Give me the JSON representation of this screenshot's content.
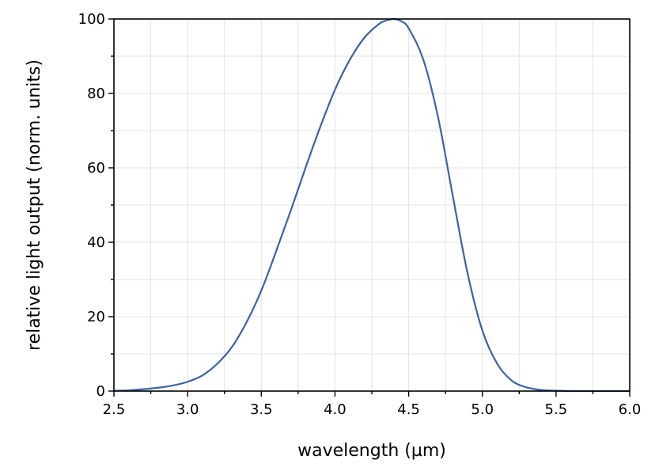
{
  "chart_data": {
    "type": "line",
    "xlabel": "wavelength (µm)",
    "ylabel": "relative light output (norm. units)",
    "xlim": [
      2.5,
      6.0
    ],
    "ylim": [
      0,
      100
    ],
    "x_ticks": [
      "2.5",
      "3.0",
      "3.5",
      "4.0",
      "4.5",
      "5.0",
      "5.5",
      "6.0"
    ],
    "y_ticks": [
      "0",
      "20",
      "40",
      "60",
      "80",
      "100"
    ],
    "grid": true,
    "series": [
      {
        "color": "#3a63a8",
        "x": [
          2.5,
          2.6,
          2.7,
          2.8,
          2.9,
          3.0,
          3.1,
          3.2,
          3.3,
          3.4,
          3.5,
          3.6,
          3.7,
          3.8,
          3.9,
          4.0,
          4.1,
          4.2,
          4.3,
          4.35,
          4.4,
          4.45,
          4.5,
          4.6,
          4.7,
          4.8,
          4.9,
          5.0,
          5.1,
          5.2,
          5.3,
          5.4,
          5.5,
          5.6,
          5.7,
          5.8,
          5.9,
          6.0
        ],
        "y": [
          0.1,
          0.2,
          0.5,
          0.9,
          1.5,
          2.5,
          4.2,
          7.3,
          11.8,
          18.5,
          27,
          37.5,
          48.5,
          60,
          71,
          81,
          89,
          95,
          98.7,
          99.6,
          100,
          99.4,
          97.5,
          89,
          73.5,
          52.3,
          31.6,
          16.3,
          7.4,
          2.8,
          1.0,
          0.3,
          0.1,
          0,
          0,
          0,
          0,
          0
        ]
      }
    ]
  }
}
